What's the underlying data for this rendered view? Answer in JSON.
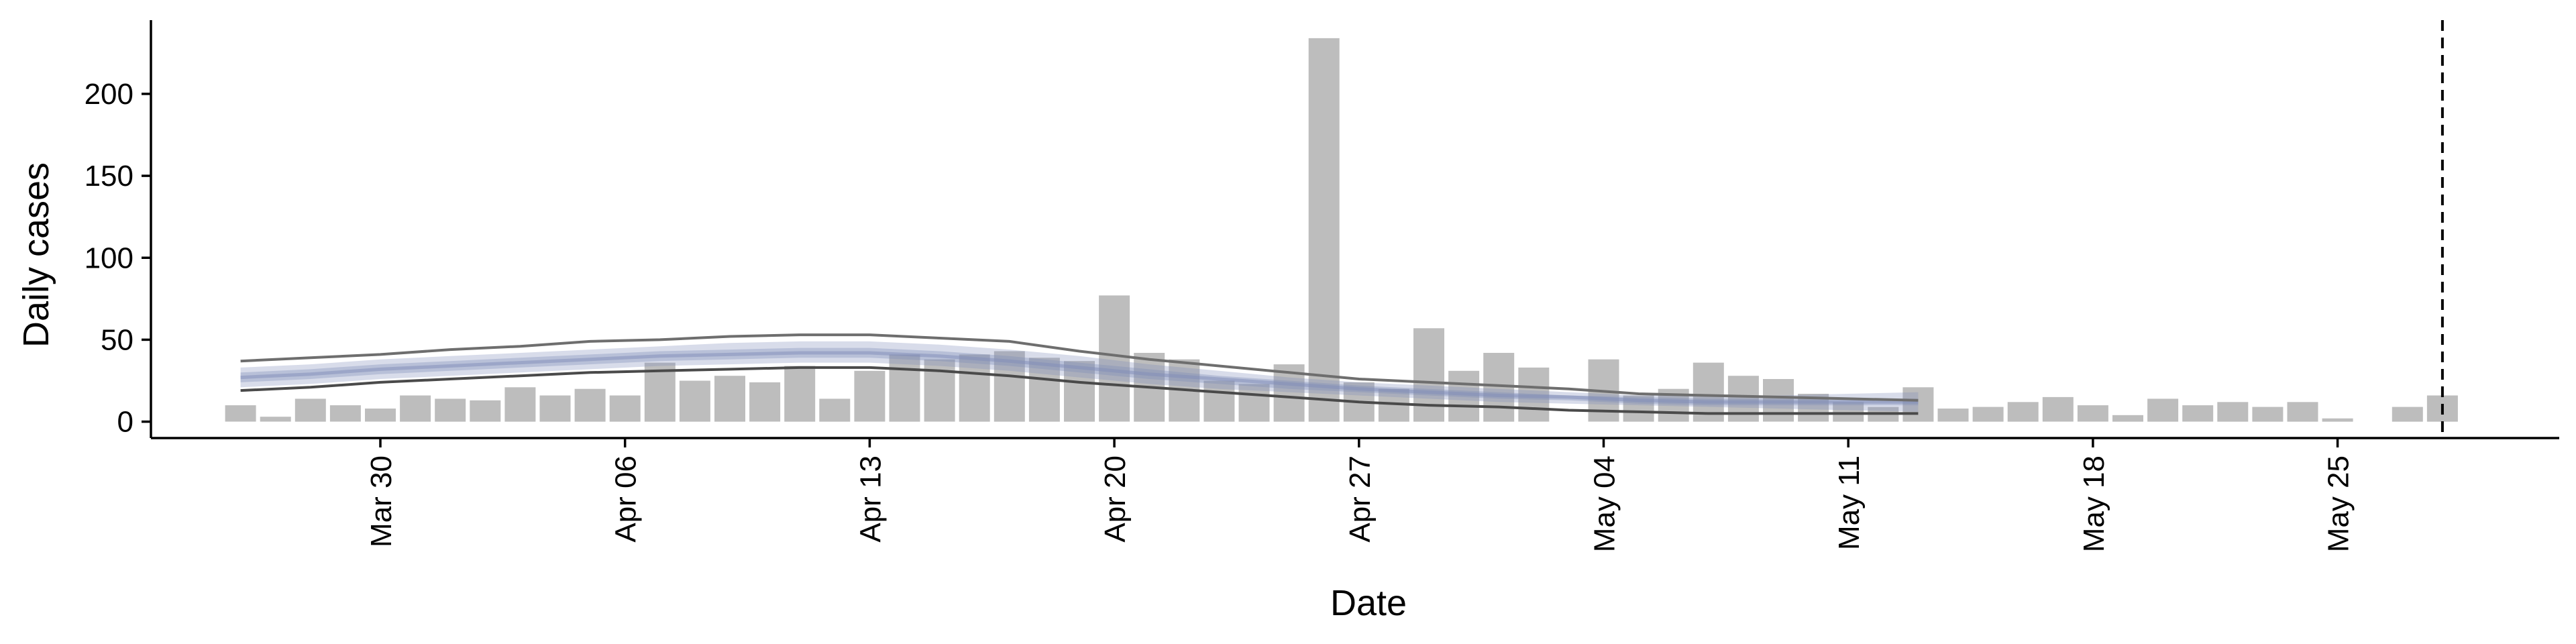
{
  "chart_data": {
    "type": "bar",
    "title": "",
    "xlabel": "Date",
    "ylabel": "Daily cases",
    "ylim": [
      -10,
      245
    ],
    "yticks": [
      0,
      50,
      100,
      150,
      200
    ],
    "x_tick_labels": [
      "Mar 30",
      "Apr 06",
      "Apr 13",
      "Apr 20",
      "Apr 27",
      "May 04",
      "May 11",
      "May 18",
      "May 25"
    ],
    "x_tick_dates": [
      "2020-03-30",
      "2020-04-06",
      "2020-04-13",
      "2020-04-20",
      "2020-04-27",
      "2020-05-04",
      "2020-05-11",
      "2020-05-18",
      "2020-05-25"
    ],
    "grid": false,
    "legend": "none",
    "bars": {
      "color": "#bdbdbd",
      "dates": [
        "2020-03-26",
        "2020-03-27",
        "2020-03-28",
        "2020-03-29",
        "2020-03-30",
        "2020-03-31",
        "2020-04-01",
        "2020-04-02",
        "2020-04-03",
        "2020-04-04",
        "2020-04-05",
        "2020-04-06",
        "2020-04-07",
        "2020-04-08",
        "2020-04-09",
        "2020-04-10",
        "2020-04-11",
        "2020-04-12",
        "2020-04-13",
        "2020-04-14",
        "2020-04-15",
        "2020-04-16",
        "2020-04-17",
        "2020-04-18",
        "2020-04-19",
        "2020-04-20",
        "2020-04-21",
        "2020-04-22",
        "2020-04-23",
        "2020-04-24",
        "2020-04-25",
        "2020-04-26",
        "2020-04-27",
        "2020-04-28",
        "2020-04-29",
        "2020-04-30",
        "2020-05-01",
        "2020-05-02",
        "2020-05-03",
        "2020-05-04",
        "2020-05-05",
        "2020-05-06",
        "2020-05-07",
        "2020-05-08",
        "2020-05-09",
        "2020-05-10",
        "2020-05-11",
        "2020-05-12",
        "2020-05-13",
        "2020-05-14",
        "2020-05-15",
        "2020-05-16",
        "2020-05-17",
        "2020-05-18",
        "2020-05-19",
        "2020-05-20",
        "2020-05-21",
        "2020-05-22",
        "2020-05-23",
        "2020-05-24",
        "2020-05-25",
        "2020-05-26",
        "2020-05-27",
        "2020-05-28"
      ],
      "values": [
        10,
        3,
        14,
        10,
        8,
        16,
        14,
        13,
        21,
        16,
        20,
        16,
        36,
        25,
        28,
        24,
        34,
        14,
        31,
        41,
        38,
        41,
        43,
        39,
        37,
        77,
        42,
        38,
        25,
        23,
        35,
        234,
        24,
        20,
        57,
        31,
        42,
        33,
        0,
        38,
        16,
        20,
        36,
        28,
        26,
        17,
        12,
        9,
        21,
        8,
        9,
        12,
        15,
        10,
        4,
        14,
        10,
        12,
        9,
        12,
        2,
        0,
        9,
        16
      ]
    },
    "series": [
      {
        "color": "#7f8cb8",
        "dates": [
          "2020-03-26",
          "2020-03-28",
          "2020-03-30",
          "2020-04-01",
          "2020-04-03",
          "2020-04-05",
          "2020-04-07",
          "2020-04-09",
          "2020-04-11",
          "2020-04-13",
          "2020-04-15",
          "2020-04-17",
          "2020-04-19",
          "2020-04-21",
          "2020-04-23",
          "2020-04-25",
          "2020-04-27",
          "2020-04-29",
          "2020-05-01",
          "2020-05-03",
          "2020-05-05",
          "2020-05-07",
          "2020-05-09",
          "2020-05-11",
          "2020-05-13"
        ],
        "upper": [
          37,
          39,
          41,
          44,
          46,
          49,
          50,
          52,
          53,
          53,
          51,
          49,
          43,
          38,
          34,
          30,
          26,
          24,
          22,
          20,
          17,
          16,
          15,
          14,
          13
        ],
        "outer_band_upper": [
          33,
          35,
          38,
          40,
          42,
          44,
          46,
          48,
          49,
          49,
          47,
          44,
          40,
          35,
          31,
          27,
          24,
          22,
          20,
          18,
          16,
          16,
          16,
          17,
          18
        ],
        "inner_band_upper": [
          30,
          32,
          35,
          37,
          39,
          41,
          43,
          44,
          45,
          45,
          43,
          40,
          36,
          32,
          28,
          25,
          22,
          20,
          18,
          16,
          15,
          14,
          14,
          14,
          14
        ],
        "median": [
          27,
          29,
          32,
          34,
          36,
          38,
          40,
          41,
          42,
          42,
          40,
          37,
          33,
          29,
          26,
          23,
          20,
          18,
          16,
          15,
          13,
          12,
          12,
          12,
          12
        ],
        "inner_band_lower": [
          24,
          26,
          29,
          31,
          33,
          35,
          37,
          38,
          39,
          39,
          37,
          34,
          30,
          26,
          23,
          20,
          18,
          16,
          14,
          13,
          11,
          10,
          10,
          10,
          10
        ],
        "outer_band_lower": [
          21,
          23,
          26,
          28,
          30,
          32,
          34,
          35,
          36,
          36,
          34,
          31,
          27,
          23,
          20,
          18,
          16,
          14,
          12,
          11,
          10,
          9,
          8,
          7,
          6
        ],
        "lower": [
          19,
          21,
          24,
          26,
          28,
          30,
          31,
          32,
          33,
          33,
          31,
          28,
          24,
          21,
          18,
          15,
          12,
          10,
          9,
          7,
          6,
          5,
          5,
          5,
          5
        ]
      }
    ],
    "vline": {
      "date": "2020-05-28",
      "style": "dashed"
    }
  }
}
